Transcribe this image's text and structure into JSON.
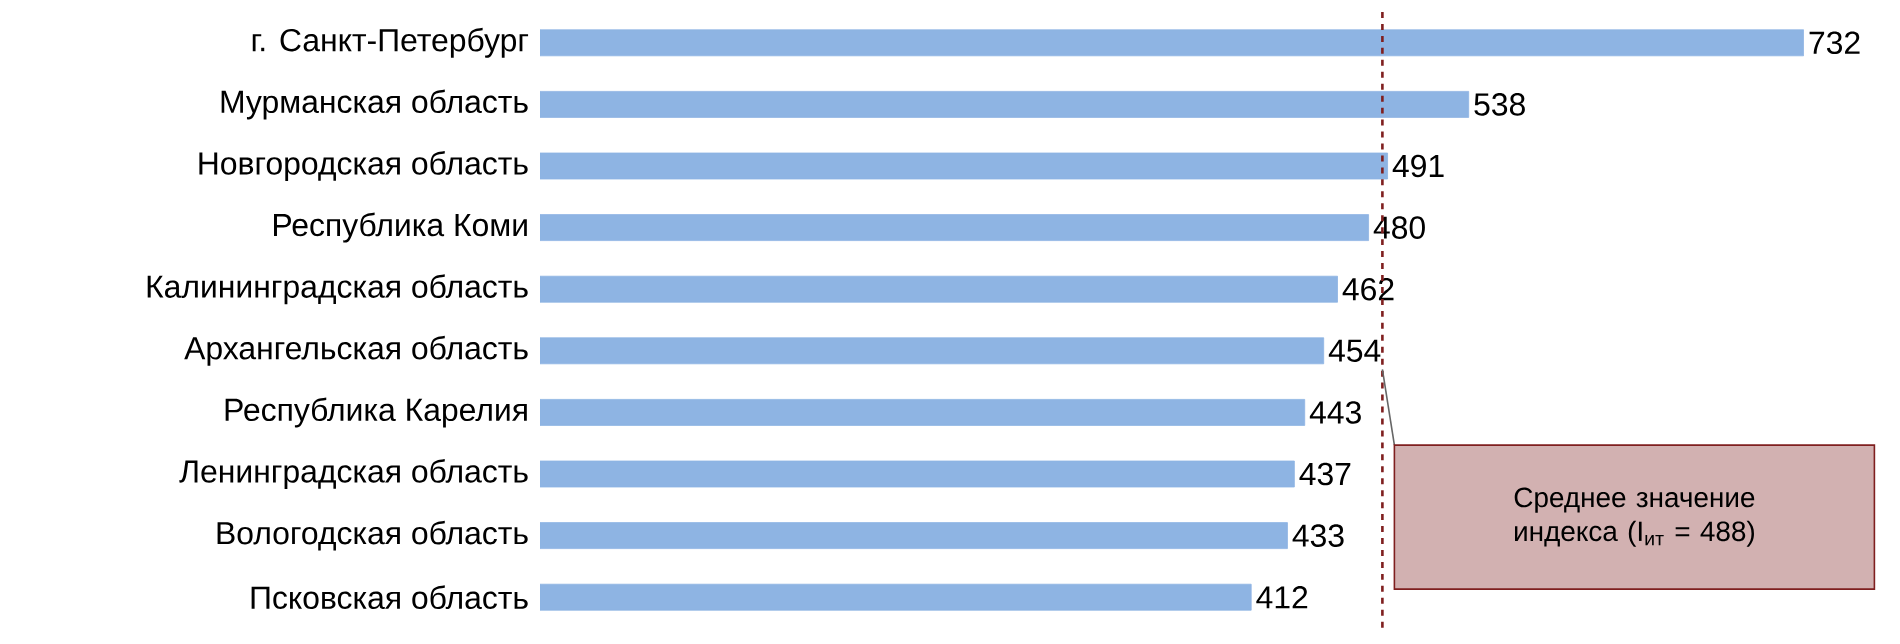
{
  "chart_data": {
    "type": "bar",
    "orientation": "horizontal",
    "categories": [
      "г. Санкт-Петербург",
      "Мурманская область",
      "Новгородская область",
      "Республика Коми",
      "Калининградская область",
      "Архангельская область",
      "Республика Карелия",
      "Ленинградская область",
      "Вологодская область",
      "Псковская область"
    ],
    "values": [
      732,
      538,
      491,
      480,
      462,
      454,
      443,
      437,
      433,
      412
    ],
    "color": "#8eb4e3",
    "data_labels": true,
    "ref_lines": [
      {
        "axis": "x",
        "value": 488,
        "color": "#7f1f1f",
        "line_style": "dashed"
      }
    ],
    "annotations": [
      "Среднее значение индекса (I$_{ит}$ = 488)"
    ]
  }
}
